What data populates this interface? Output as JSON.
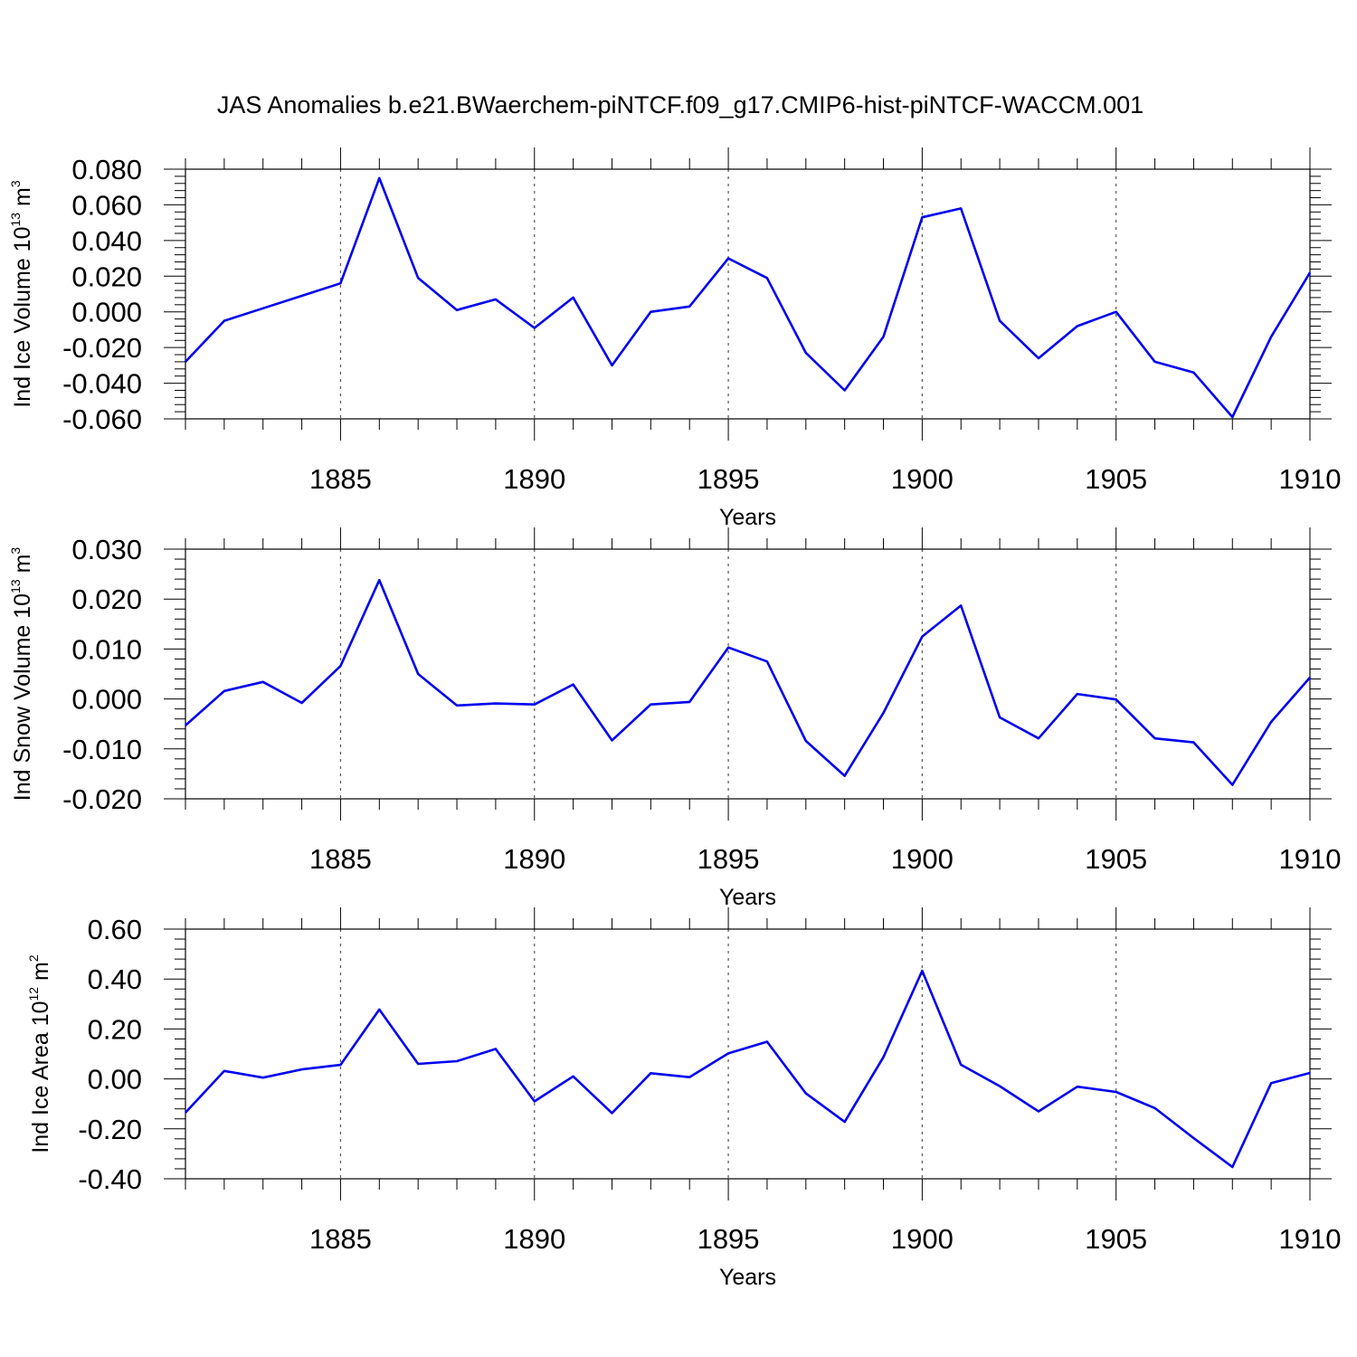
{
  "title": "JAS Anomalies b.e21.BWaerchem-piNTCF.f09_g17.CMIP6-hist-piNTCF-WACCM.001",
  "chart_data": [
    {
      "type": "line",
      "ylabel": {
        "main": "Ind Ice Volume 10",
        "exp": "13",
        "unit": "m",
        "unit_exp": "3"
      },
      "xlabel": "Years",
      "xlim": [
        1881,
        1910
      ],
      "ylim": [
        -0.06,
        0.08
      ],
      "yticks": [
        -0.06,
        -0.04,
        -0.02,
        0.0,
        0.02,
        0.04,
        0.06,
        0.08
      ],
      "ytick_labels": [
        "-0.060",
        "-0.040",
        "-0.020",
        "0.000",
        "0.020",
        "0.040",
        "0.060",
        "0.080"
      ],
      "xticks": [
        1885,
        1890,
        1895,
        1900,
        1905,
        1910
      ],
      "xtick_labels": [
        "1885",
        "1890",
        "1895",
        "1900",
        "1905",
        "1910"
      ],
      "x": [
        1881,
        1882,
        1883,
        1884,
        1885,
        1886,
        1887,
        1888,
        1889,
        1890,
        1891,
        1892,
        1893,
        1894,
        1895,
        1896,
        1897,
        1898,
        1899,
        1900,
        1901,
        1902,
        1903,
        1904,
        1905,
        1906,
        1907,
        1908,
        1909,
        1910
      ],
      "values": [
        -0.028,
        -0.005,
        0.002,
        0.009,
        0.016,
        0.075,
        0.019,
        0.001,
        0.007,
        -0.009,
        0.008,
        -0.03,
        0.0,
        0.003,
        0.03,
        0.019,
        -0.023,
        -0.044,
        -0.014,
        0.053,
        0.058,
        -0.005,
        -0.026,
        -0.008,
        0.0,
        -0.028,
        -0.034,
        -0.059,
        -0.014,
        0.022
      ],
      "color": "#0000ee",
      "grid": "dashed vertical at major x ticks"
    },
    {
      "type": "line",
      "ylabel": {
        "main": "Ind Snow Volume 10",
        "exp": "13",
        "unit": "m",
        "unit_exp": "3"
      },
      "xlabel": "Years",
      "xlim": [
        1881,
        1910
      ],
      "ylim": [
        -0.02,
        0.03
      ],
      "yticks": [
        -0.02,
        -0.01,
        0.0,
        0.01,
        0.02,
        0.03
      ],
      "ytick_labels": [
        "-0.020",
        "-0.010",
        "0.000",
        "0.010",
        "0.020",
        "0.030"
      ],
      "xticks": [
        1885,
        1890,
        1895,
        1900,
        1905,
        1910
      ],
      "xtick_labels": [
        "1885",
        "1890",
        "1895",
        "1900",
        "1905",
        "1910"
      ],
      "x": [
        1881,
        1882,
        1883,
        1884,
        1885,
        1886,
        1887,
        1888,
        1889,
        1890,
        1891,
        1892,
        1893,
        1894,
        1895,
        1896,
        1897,
        1898,
        1899,
        1900,
        1901,
        1902,
        1903,
        1904,
        1905,
        1906,
        1907,
        1908,
        1909,
        1910
      ],
      "values": [
        -0.0053,
        0.0016,
        0.0034,
        -0.0008,
        0.0066,
        0.0238,
        0.005,
        -0.0013,
        -0.0009,
        -0.0011,
        0.0029,
        -0.0083,
        -0.0011,
        -0.0006,
        0.0103,
        0.0075,
        -0.0084,
        -0.0154,
        -0.0028,
        0.0125,
        0.0187,
        -0.0037,
        -0.0079,
        0.001,
        -0.0001,
        -0.0079,
        -0.0087,
        -0.0172,
        -0.0046,
        0.0043
      ],
      "color": "#0000ee",
      "grid": "dashed vertical at major x ticks"
    },
    {
      "type": "line",
      "ylabel": {
        "main": "Ind Ice Area 10",
        "exp": "12",
        "unit": "m",
        "unit_exp": "2"
      },
      "xlabel": "Years",
      "xlim": [
        1881,
        1910
      ],
      "ylim": [
        -0.4,
        0.6
      ],
      "yticks": [
        -0.4,
        -0.2,
        0.0,
        0.2,
        0.4,
        0.6
      ],
      "ytick_labels": [
        "-0.40",
        "-0.20",
        "0.00",
        "0.20",
        "0.40",
        "0.60"
      ],
      "xticks": [
        1885,
        1890,
        1895,
        1900,
        1905,
        1910
      ],
      "xtick_labels": [
        "1885",
        "1890",
        "1895",
        "1900",
        "1905",
        "1910"
      ],
      "x": [
        1881,
        1882,
        1883,
        1884,
        1885,
        1886,
        1887,
        1888,
        1889,
        1890,
        1891,
        1892,
        1893,
        1894,
        1895,
        1896,
        1897,
        1898,
        1899,
        1900,
        1901,
        1902,
        1903,
        1904,
        1905,
        1906,
        1907,
        1908,
        1909,
        1910
      ],
      "values": [
        -0.135,
        0.032,
        0.005,
        0.038,
        0.056,
        0.278,
        0.06,
        0.071,
        0.12,
        -0.09,
        0.01,
        -0.137,
        0.023,
        0.007,
        0.102,
        0.149,
        -0.058,
        -0.172,
        0.087,
        0.433,
        0.057,
        -0.029,
        -0.13,
        -0.031,
        -0.052,
        -0.117,
        -0.237,
        -0.353,
        -0.017,
        0.024
      ],
      "color": "#0000ee",
      "grid": "dashed vertical at major x ticks"
    }
  ]
}
